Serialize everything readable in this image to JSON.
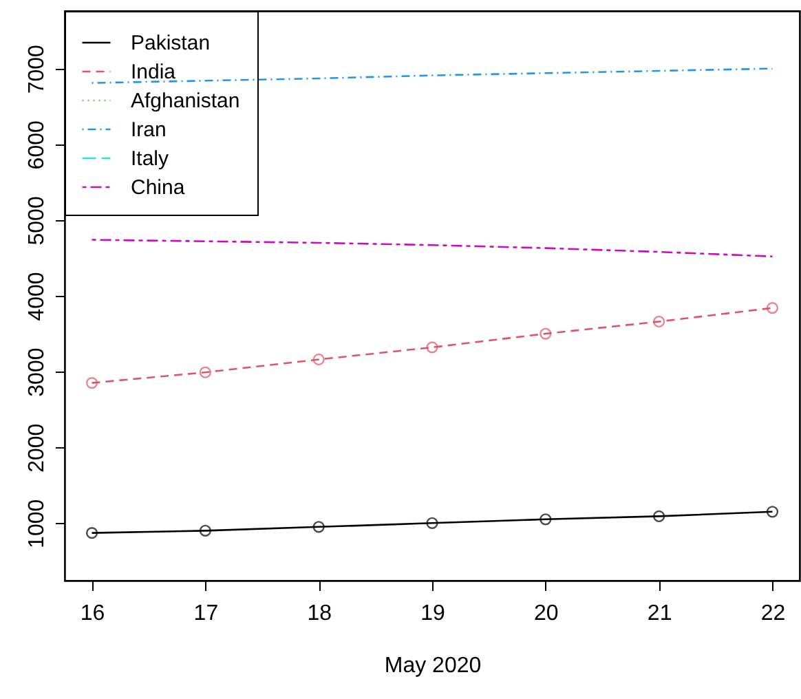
{
  "chart_data": {
    "type": "line",
    "xlabel": "May 2020",
    "x": [
      16,
      17,
      18,
      19,
      20,
      21,
      22
    ],
    "xlim": [
      15.76,
      22.24
    ],
    "xticks": [
      16,
      17,
      18,
      19,
      20,
      21,
      22
    ],
    "ylim": [
      240,
      7760
    ],
    "yticks": [
      1000,
      2000,
      3000,
      4000,
      5000,
      6000,
      7000
    ],
    "grid": false,
    "legend": "top left",
    "series": [
      {
        "name": "Pakistan",
        "color": "#000000",
        "line_style": "solid",
        "marker": "circle",
        "values": [
          870,
          900,
          950,
          1000,
          1050,
          1090,
          1150
        ]
      },
      {
        "name": "India",
        "color": "#df536b",
        "line_style": "dashed",
        "marker": "circle",
        "values": [
          2850,
          2990,
          3160,
          3320,
          3500,
          3660,
          3840
        ]
      },
      {
        "name": "Afghanistan",
        "color": "#61d04f",
        "line_style": "dotted",
        "marker": "none",
        "values": [
          null,
          null,
          null,
          null,
          null,
          null,
          null
        ]
      },
      {
        "name": "Iran",
        "color": "#2297e6",
        "line_style": "dashdot",
        "marker": "none",
        "values": [
          6810,
          6840,
          6870,
          6910,
          6940,
          6970,
          7000
        ]
      },
      {
        "name": "Italy",
        "color": "#28e2e5",
        "line_style": "longdash",
        "marker": "none",
        "values": [
          null,
          null,
          null,
          null,
          null,
          null,
          null
        ]
      },
      {
        "name": "China",
        "color": "#cd0bbc",
        "line_style": "twodash",
        "marker": "none",
        "values": [
          4740,
          4720,
          4700,
          4670,
          4630,
          4580,
          4520
        ]
      }
    ]
  }
}
